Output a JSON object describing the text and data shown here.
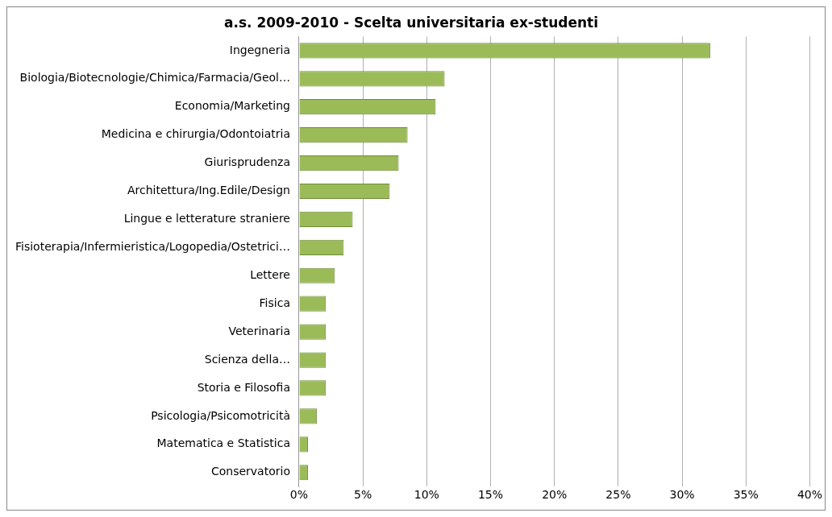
{
  "chart_data": {
    "type": "bar",
    "orientation": "horizontal",
    "title": "a.s. 2009-2010 - Scelta universitaria ex-studenti",
    "categories": [
      "Ingegneria",
      "Biologia/Biotecnologie/Chimica/Farmacia/Geol…",
      "Economia/Marketing",
      "Medicina e chirurgia/Odontoiatria",
      "Giurisprudenza",
      "Architettura/Ing.Edile/Design",
      "Lingue e letterature straniere",
      "Fisioterapia/Infermieristica/Logopedia/Ostetrici…",
      "Lettere",
      "Fisica",
      "Veterinaria",
      "Scienza della…",
      "Storia e Filosofia",
      "Psicologia/Psicomotricità",
      "Matematica e Statistica",
      "Conservatorio"
    ],
    "values": [
      32.2,
      11.4,
      10.7,
      8.5,
      7.8,
      7.1,
      4.2,
      3.5,
      2.8,
      2.1,
      2.1,
      2.1,
      2.1,
      1.4,
      0.7,
      0.7
    ],
    "color": "#9bbb59",
    "xlim": [
      0,
      40
    ],
    "xticks": [
      {
        "value": 0,
        "label": "0%"
      },
      {
        "value": 5,
        "label": "5%"
      },
      {
        "value": 10,
        "label": "10%"
      },
      {
        "value": 15,
        "label": "15%"
      },
      {
        "value": 20,
        "label": "20%"
      },
      {
        "value": 25,
        "label": "25%"
      },
      {
        "value": 30,
        "label": "30%"
      },
      {
        "value": 35,
        "label": "35%"
      },
      {
        "value": 40,
        "label": "40%"
      }
    ],
    "grid": "x"
  }
}
